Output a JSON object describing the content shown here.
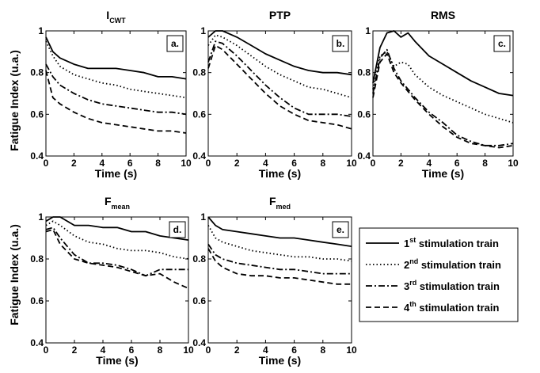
{
  "colors": {
    "line": "#000000",
    "background": "#ffffff"
  },
  "ylabel": "Fatigue Index (u.a.)",
  "xlabel": "Time (s)",
  "legend": {
    "entries": [
      {
        "sup": "st",
        "label": "stimulation train"
      },
      {
        "sup": "nd",
        "label": "stimulation train"
      },
      {
        "sup": "rd",
        "label": "stimulation train"
      },
      {
        "sup": "th",
        "label": "stimulation train"
      }
    ]
  },
  "chart_data": [
    {
      "type": "line",
      "title_main": "I",
      "title_sub": "CWT",
      "panel_label": "a.",
      "xlim": [
        0,
        10
      ],
      "ylim": [
        0.4,
        1
      ],
      "xticks": [
        "0",
        "2",
        "4",
        "6",
        "8",
        "10"
      ],
      "yticks": [
        "0.4",
        "0.6",
        "0.8",
        "1"
      ],
      "x": [
        0,
        0.5,
        1,
        2,
        3,
        4,
        5,
        6,
        7,
        8,
        9,
        10
      ],
      "series": [
        {
          "style": "solid",
          "values": [
            0.97,
            0.9,
            0.87,
            0.84,
            0.82,
            0.82,
            0.82,
            0.81,
            0.8,
            0.78,
            0.78,
            0.77
          ]
        },
        {
          "style": "dotted",
          "values": [
            0.95,
            0.88,
            0.83,
            0.79,
            0.77,
            0.75,
            0.74,
            0.72,
            0.71,
            0.7,
            0.69,
            0.68
          ]
        },
        {
          "style": "dashdot",
          "values": [
            0.84,
            0.78,
            0.74,
            0.7,
            0.67,
            0.65,
            0.64,
            0.63,
            0.62,
            0.61,
            0.61,
            0.6
          ]
        },
        {
          "style": "dashed",
          "values": [
            0.81,
            0.68,
            0.65,
            0.61,
            0.58,
            0.56,
            0.55,
            0.54,
            0.53,
            0.52,
            0.52,
            0.51
          ]
        }
      ]
    },
    {
      "type": "line",
      "title_main": "PTP",
      "title_sub": "",
      "panel_label": "b.",
      "xlim": [
        0,
        10
      ],
      "ylim": [
        0.4,
        1
      ],
      "xticks": [
        "0",
        "2",
        "4",
        "6",
        "8",
        "10"
      ],
      "yticks": [
        "0.4",
        "0.6",
        "0.8",
        "1"
      ],
      "x": [
        0,
        0.5,
        1,
        2,
        3,
        4,
        5,
        6,
        7,
        8,
        9,
        10
      ],
      "series": [
        {
          "style": "solid",
          "values": [
            0.97,
            1,
            1,
            0.97,
            0.93,
            0.89,
            0.86,
            0.83,
            0.81,
            0.8,
            0.8,
            0.79
          ]
        },
        {
          "style": "dotted",
          "values": [
            0.93,
            0.98,
            0.97,
            0.93,
            0.88,
            0.83,
            0.79,
            0.76,
            0.73,
            0.72,
            0.7,
            0.68
          ]
        },
        {
          "style": "dashdot",
          "values": [
            0.85,
            0.95,
            0.94,
            0.88,
            0.81,
            0.74,
            0.68,
            0.63,
            0.6,
            0.6,
            0.6,
            0.59
          ]
        },
        {
          "style": "dashed",
          "values": [
            0.82,
            0.93,
            0.91,
            0.84,
            0.77,
            0.7,
            0.64,
            0.6,
            0.57,
            0.56,
            0.55,
            0.53
          ]
        }
      ]
    },
    {
      "type": "line",
      "title_main": "RMS",
      "title_sub": "",
      "panel_label": "c.",
      "xlim": [
        0,
        10
      ],
      "ylim": [
        0.4,
        1
      ],
      "xticks": [
        "0",
        "2",
        "4",
        "6",
        "8",
        "10"
      ],
      "yticks": [
        "0.4",
        "0.6",
        "0.8",
        "1"
      ],
      "x": [
        0,
        0.5,
        1,
        1.5,
        2,
        2.5,
        3,
        4,
        5,
        6,
        7,
        8,
        9,
        10
      ],
      "series": [
        {
          "style": "solid",
          "values": [
            0.75,
            0.92,
            0.99,
            1,
            0.97,
            0.99,
            0.95,
            0.88,
            0.84,
            0.8,
            0.76,
            0.73,
            0.7,
            0.69
          ]
        },
        {
          "style": "dotted",
          "values": [
            0.72,
            0.88,
            0.9,
            0.83,
            0.85,
            0.84,
            0.79,
            0.73,
            0.69,
            0.66,
            0.63,
            0.6,
            0.58,
            0.56
          ]
        },
        {
          "style": "dashdot",
          "values": [
            0.7,
            0.87,
            0.91,
            0.82,
            0.76,
            0.72,
            0.68,
            0.61,
            0.56,
            0.5,
            0.47,
            0.45,
            0.45,
            0.46
          ]
        },
        {
          "style": "dashed",
          "values": [
            0.68,
            0.85,
            0.89,
            0.8,
            0.75,
            0.71,
            0.67,
            0.6,
            0.54,
            0.49,
            0.46,
            0.45,
            0.44,
            0.45
          ]
        }
      ]
    },
    {
      "type": "line",
      "title_main": "F",
      "title_sub": "mean",
      "panel_label": "d.",
      "xlim": [
        0,
        10
      ],
      "ylim": [
        0.4,
        1
      ],
      "xticks": [
        "0",
        "2",
        "4",
        "6",
        "8",
        "10"
      ],
      "yticks": [
        "0.4",
        "0.6",
        "0.8",
        "1"
      ],
      "x": [
        0,
        0.5,
        1,
        2,
        3,
        4,
        5,
        6,
        7,
        8,
        9,
        10
      ],
      "series": [
        {
          "style": "solid",
          "values": [
            0.98,
            1,
            1,
            0.96,
            0.96,
            0.95,
            0.95,
            0.93,
            0.93,
            0.91,
            0.9,
            0.89
          ]
        },
        {
          "style": "dotted",
          "values": [
            0.96,
            0.98,
            0.96,
            0.91,
            0.88,
            0.87,
            0.85,
            0.84,
            0.84,
            0.83,
            0.81,
            0.8
          ]
        },
        {
          "style": "dashdot",
          "values": [
            0.94,
            0.95,
            0.9,
            0.82,
            0.78,
            0.78,
            0.77,
            0.75,
            0.72,
            0.75,
            0.75,
            0.75
          ]
        },
        {
          "style": "dashed",
          "values": [
            0.93,
            0.94,
            0.87,
            0.8,
            0.78,
            0.77,
            0.76,
            0.74,
            0.72,
            0.73,
            0.69,
            0.66
          ]
        }
      ]
    },
    {
      "type": "line",
      "title_main": "F",
      "title_sub": "med",
      "panel_label": "e.",
      "xlim": [
        0,
        10
      ],
      "ylim": [
        0.4,
        1
      ],
      "xticks": [
        "0",
        "2",
        "4",
        "6",
        "8",
        "10"
      ],
      "yticks": [
        "0.4",
        "0.6",
        "0.8",
        "1"
      ],
      "x": [
        0,
        0.5,
        1,
        2,
        3,
        4,
        5,
        6,
        7,
        8,
        9,
        10
      ],
      "series": [
        {
          "style": "solid",
          "values": [
            1,
            0.96,
            0.94,
            0.93,
            0.92,
            0.91,
            0.9,
            0.9,
            0.89,
            0.88,
            0.87,
            0.86
          ]
        },
        {
          "style": "dotted",
          "values": [
            0.96,
            0.9,
            0.88,
            0.86,
            0.84,
            0.83,
            0.82,
            0.81,
            0.81,
            0.8,
            0.8,
            0.79
          ]
        },
        {
          "style": "dashdot",
          "values": [
            0.87,
            0.82,
            0.8,
            0.78,
            0.77,
            0.76,
            0.75,
            0.75,
            0.74,
            0.73,
            0.73,
            0.73
          ]
        },
        {
          "style": "dashed",
          "values": [
            0.85,
            0.79,
            0.76,
            0.73,
            0.72,
            0.72,
            0.71,
            0.71,
            0.7,
            0.69,
            0.68,
            0.68
          ]
        }
      ]
    }
  ]
}
